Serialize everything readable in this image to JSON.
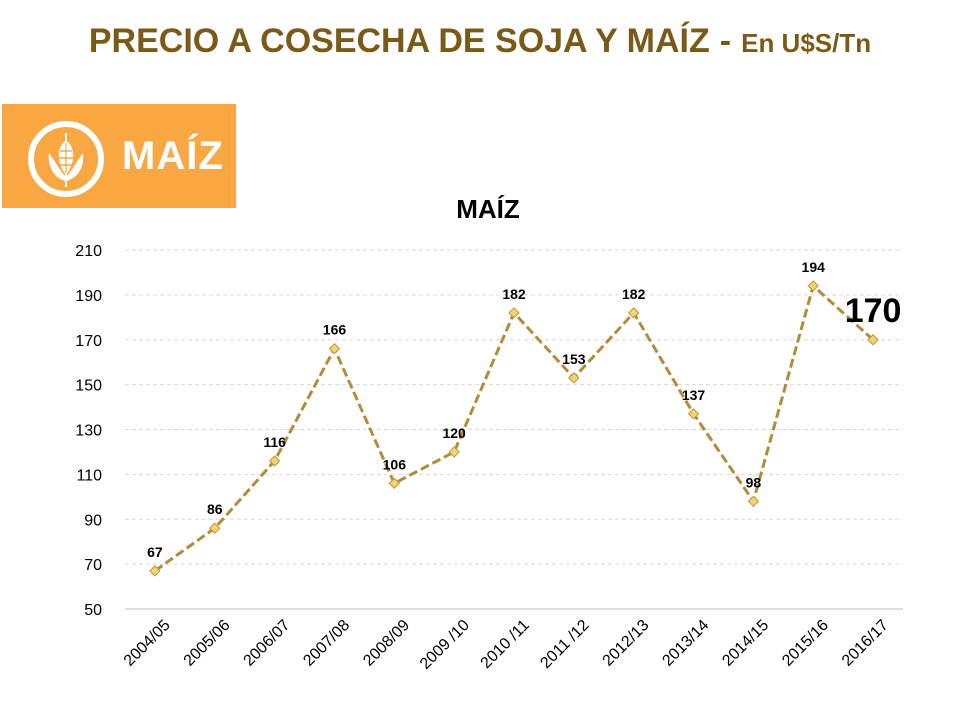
{
  "header": {
    "title": "PRECIO A COSECHA DE SOJA Y MAÍZ",
    "separator": "-",
    "unit": "En U$S/Tn"
  },
  "banner": {
    "label": "MAÍZ",
    "icon": "corn-icon",
    "color": "#f9a743"
  },
  "chart_data": {
    "type": "line",
    "title": "MAÍZ",
    "xlabel": "",
    "ylabel": "",
    "categories": [
      "2004/05",
      "2005/06",
      "2006/07",
      "2007/08",
      "2008/09",
      "2009 /10",
      "2010 /11",
      "2011 /12",
      "2012/13",
      "2013/14",
      "2014/15",
      "2015/16",
      "2016/17"
    ],
    "series": [
      {
        "values": [
          67,
          86,
          116,
          166,
          106,
          120,
          182,
          153,
          182,
          137,
          98,
          194,
          170
        ]
      }
    ],
    "data_labels": [
      "67",
      "86",
      "116",
      "166",
      "106",
      "120",
      "182",
      "153",
      "182",
      "137",
      "98",
      "194",
      "170"
    ],
    "highlight_index": 12,
    "ylim": [
      50,
      210
    ],
    "yticks": [
      50,
      70,
      90,
      110,
      130,
      150,
      170,
      190,
      210
    ],
    "grid": true,
    "legend": "none",
    "line_color": "#b38b3a",
    "line_style": "dashed",
    "marker_color": "#f2d477",
    "marker_stroke": "#b8963a",
    "marker_shape": "diamond"
  }
}
